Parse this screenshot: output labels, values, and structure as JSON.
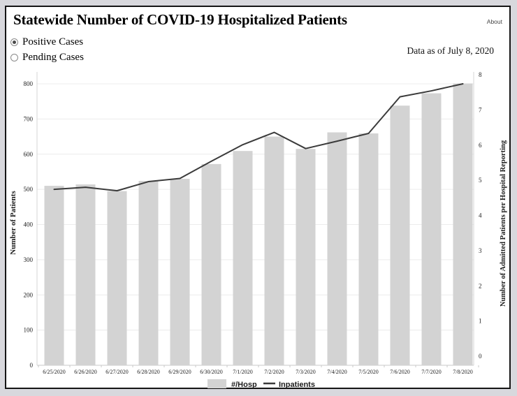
{
  "page": {
    "title": "Statewide Number of COVID-19 Hospitalized Patients",
    "about_label": "About",
    "data_as_of": "Data as of July 8, 2020"
  },
  "filters": {
    "options": [
      {
        "label": "Positive Cases",
        "selected": true
      },
      {
        "label": "Pending Cases",
        "selected": false
      }
    ]
  },
  "chart_data": {
    "type": "bar+line",
    "title": "Statewide Number of COVID-19 Hospitalized Patients",
    "categories": [
      "6/25/2020",
      "6/26/2020",
      "6/27/2020",
      "6/28/2020",
      "6/29/2020",
      "6/30/2020",
      "7/1/2020",
      "7/2/2020",
      "7/3/2020",
      "7/4/2020",
      "7/5/2020",
      "7/6/2020",
      "7/7/2020",
      "7/8/2020"
    ],
    "series": [
      {
        "name": "#/Hosp",
        "type": "bar",
        "axis": "left",
        "color": "#d3d3d3",
        "values": [
          510,
          514,
          495,
          524,
          530,
          572,
          609,
          650,
          615,
          662,
          659,
          738,
          773,
          801
        ]
      },
      {
        "name": "Inpatients",
        "type": "line",
        "axis": "right",
        "color": "#3b3b3b",
        "values": [
          5.0,
          5.06,
          4.96,
          5.22,
          5.31,
          5.8,
          6.27,
          6.62,
          6.16,
          6.37,
          6.59,
          7.63,
          7.8,
          8.0
        ]
      }
    ],
    "left_axis": {
      "label": "Number of Patients",
      "min": 0,
      "max": 800,
      "step": 100
    },
    "right_axis": {
      "label": "Number of Admitted Patients per Hospital Reporting",
      "min": 0,
      "max": 8,
      "step": 1
    },
    "legend_position": "bottom",
    "grid": true,
    "colors": {
      "gridline": "#ececec",
      "axis_line": "#c8c8c8",
      "plot_border": "#d6d6d6",
      "tick_text": "#1c1c1c"
    }
  }
}
